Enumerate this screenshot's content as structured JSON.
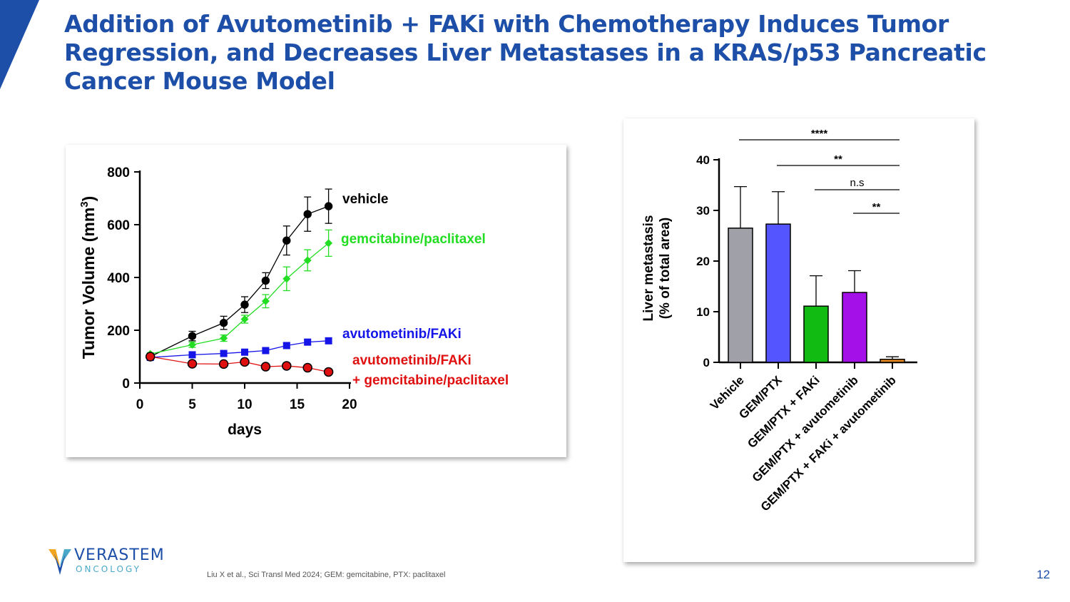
{
  "slide": {
    "title": "Addition of Avutometinib + FAKi with Chemotherapy Induces Tumor Regression, and Decreases Liver Metastases in a KRAS/p53 Pancreatic Cancer Mouse Model",
    "footnote": "Liu X et al., Sci Transl Med 2024; GEM: gemcitabine, PTX: paclitaxel",
    "page_number": "12",
    "accent_color": "#1d4fa8"
  },
  "logo": {
    "name": "VERASTEM",
    "sub": "ONCOLOGY"
  },
  "chart_data": [
    {
      "type": "line",
      "xlabel": "days",
      "ylabel": "Tumor Volume (mm",
      "ylabel_sup": "3",
      "ylabel_close": ")",
      "xlim": [
        0,
        20
      ],
      "ylim": [
        0,
        800
      ],
      "xticks": [
        "0",
        "5",
        "10",
        "15",
        "20"
      ],
      "yticks": [
        "0",
        "200",
        "400",
        "600",
        "800"
      ],
      "series": [
        {
          "name": "vehicle",
          "color": "#000000",
          "marker": "circle",
          "label_lines": [
            "vehicle"
          ],
          "x": [
            1,
            5,
            8,
            10,
            12,
            14,
            16,
            18
          ],
          "y": [
            100,
            178,
            228,
            297,
            388,
            540,
            640,
            670
          ],
          "err": [
            10,
            18,
            25,
            30,
            30,
            55,
            65,
            65
          ]
        },
        {
          "name": "gemcitabine/paclitaxel",
          "color": "#22dd22",
          "marker": "diamond",
          "label_lines": [
            "gemcitabine/paclitaxel"
          ],
          "x": [
            1,
            5,
            8,
            10,
            12,
            14,
            16,
            18
          ],
          "y": [
            110,
            145,
            170,
            242,
            310,
            395,
            465,
            530
          ],
          "err": [
            5,
            10,
            12,
            15,
            25,
            45,
            40,
            50
          ]
        },
        {
          "name": "avutometinib/FAKi",
          "color": "#1515e8",
          "marker": "square",
          "label_lines": [
            "avutometinib/FAKi"
          ],
          "x": [
            1,
            5,
            8,
            10,
            12,
            14,
            16,
            18
          ],
          "y": [
            97,
            107,
            112,
            117,
            123,
            142,
            155,
            160
          ],
          "err": [
            5,
            8,
            8,
            8,
            8,
            10,
            10,
            10
          ]
        },
        {
          "name": "avutometinib/FAKi + gemcitabine/paclitaxel",
          "color": "#e01010",
          "marker": "circle",
          "label_lines": [
            "avutometinib/FAKi",
            "+ gemcitabine/paclitaxel"
          ],
          "x": [
            1,
            5,
            8,
            10,
            12,
            14,
            16,
            18
          ],
          "y": [
            100,
            73,
            72,
            80,
            62,
            65,
            58,
            42
          ],
          "err": [
            5,
            8,
            8,
            8,
            8,
            8,
            8,
            8
          ]
        }
      ]
    },
    {
      "type": "bar",
      "ylabel_lines": [
        "Liver metastasis",
        "(% of total area)"
      ],
      "ylim": [
        0,
        40
      ],
      "yticks": [
        "0",
        "10",
        "20",
        "30",
        "40"
      ],
      "categories": [
        "Vehicle",
        "GEM/PTX",
        "GEM/PTX + FAKi",
        "GEM/PTX + avutometinib",
        "GEM/PTX + FAKi + avutometinib"
      ],
      "values": [
        26.5,
        27.3,
        11.1,
        13.8,
        0.6
      ],
      "errors": [
        8.2,
        6.4,
        6.0,
        4.3,
        0.5
      ],
      "colors": [
        "#a0a0a8",
        "#5555ff",
        "#11bb11",
        "#a411e8",
        "#e88a22"
      ],
      "significance": [
        {
          "label": "****",
          "from": 0,
          "to": 4
        },
        {
          "label": "**",
          "from": 1,
          "to": 4
        },
        {
          "label": "n.s",
          "from": 2,
          "to": 4
        },
        {
          "label": "**",
          "from": 3,
          "to": 4
        }
      ]
    }
  ]
}
